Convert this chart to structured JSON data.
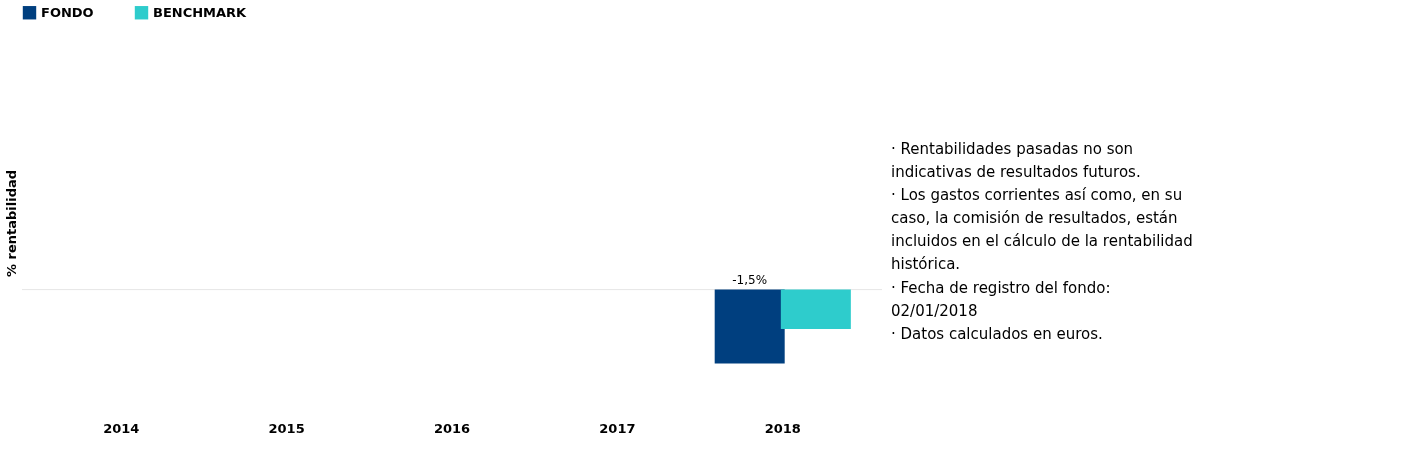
{
  "chart_data": {
    "type": "bar",
    "ylabel": "% rentabilidad",
    "categories": [
      "2014",
      "2015",
      "2016",
      "2017",
      "2018"
    ],
    "series": [
      {
        "name": "FONDO",
        "color": "#003f7f",
        "values": [
          null,
          null,
          null,
          null,
          -1.5
        ],
        "value_labels": [
          null,
          null,
          null,
          null,
          "-1,5%"
        ]
      },
      {
        "name": "BENCHMARK",
        "color": "#2ecccc",
        "values": [
          null,
          null,
          null,
          null,
          -0.8
        ]
      }
    ],
    "ref_lines": [
      {
        "axis": "y",
        "value": 0,
        "color": "#e6e6e6"
      }
    ],
    "tick_labels": "x",
    "legend": "top",
    "annotations": [
      "· Rentabilidades pasadas no son\n indicativas de resultados futuros.",
      "· Los gastos corrientes así como, en su\ncaso, la comisión de resultados, están\n incluidos en el cálculo de la rentabilidad\n histórica.",
      "· Fecha de registro del fondo:\n 02/01/2018",
      "· Datos calculados en euros."
    ]
  }
}
